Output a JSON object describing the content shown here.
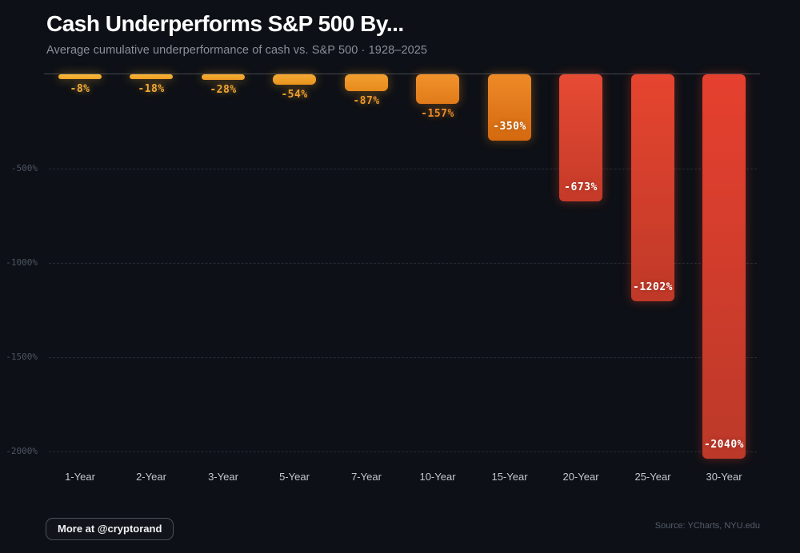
{
  "header": {
    "title": "Cash Underperforms S&P 500 By...",
    "subtitle": "Average cumulative underperformance of cash vs. S&P 500 · 1928–2025"
  },
  "chart_data": {
    "type": "bar",
    "title": "Cash Underperforms S&P 500 By...",
    "subtitle": "Average cumulative underperformance of cash vs. S&P 500 · 1928–2025",
    "categories": [
      "1-Year",
      "2-Year",
      "3-Year",
      "5-Year",
      "7-Year",
      "10-Year",
      "15-Year",
      "20-Year",
      "25-Year",
      "30-Year"
    ],
    "values": [
      -8,
      -18,
      -28,
      -54,
      -87,
      -157,
      -350,
      -673,
      -1202,
      -2040
    ],
    "value_labels": [
      "-8%",
      "-18%",
      "-28%",
      "-54%",
      "-87%",
      "-157%",
      "-350%",
      "-673%",
      "-1202%",
      "-2040%"
    ],
    "label_placement": [
      "below",
      "below",
      "below",
      "below",
      "below",
      "below",
      "inside",
      "inside",
      "inside",
      "inside"
    ],
    "bar_colors": [
      {
        "top": "#f8bb40",
        "bottom": "#f0a425",
        "label": "#f3ad36"
      },
      {
        "top": "#f7b53b",
        "bottom": "#ee9f22",
        "label": "#f2a933"
      },
      {
        "top": "#f5af37",
        "bottom": "#ec9a20",
        "label": "#f1a530"
      },
      {
        "top": "#f4a933",
        "bottom": "#ea941e",
        "label": "#f0a02d"
      },
      {
        "top": "#f2a02f",
        "bottom": "#e68b1c",
        "label": "#ef992a"
      },
      {
        "top": "#f1932c",
        "bottom": "#e07a1a",
        "label": "#ee8b27"
      },
      {
        "top": "#ee8a28",
        "bottom": "#d4690f",
        "label": "#ffffff"
      },
      {
        "top": "#e74b34",
        "bottom": "#c43a28",
        "label": "#ffffff"
      },
      {
        "top": "#e6452f",
        "bottom": "#bf3928",
        "label": "#ffffff"
      },
      {
        "top": "#e6402f",
        "bottom": "#bc3929",
        "label": "#ffffff"
      }
    ],
    "xlabel": "",
    "ylabel": "",
    "ylim": [
      0,
      -2140
    ],
    "y_ticks": [
      {
        "value": -500,
        "label": "-500%"
      },
      {
        "value": -1000,
        "label": "-1000%"
      },
      {
        "value": -1500,
        "label": "-1500%"
      },
      {
        "value": -2000,
        "label": "-2000%"
      }
    ],
    "grid": "dashed-horizontal",
    "legend": "none",
    "background": "#0d1016"
  },
  "footer": {
    "button_label": "More at @cryptorand",
    "source": "Source: YCharts, NYU.edu"
  }
}
